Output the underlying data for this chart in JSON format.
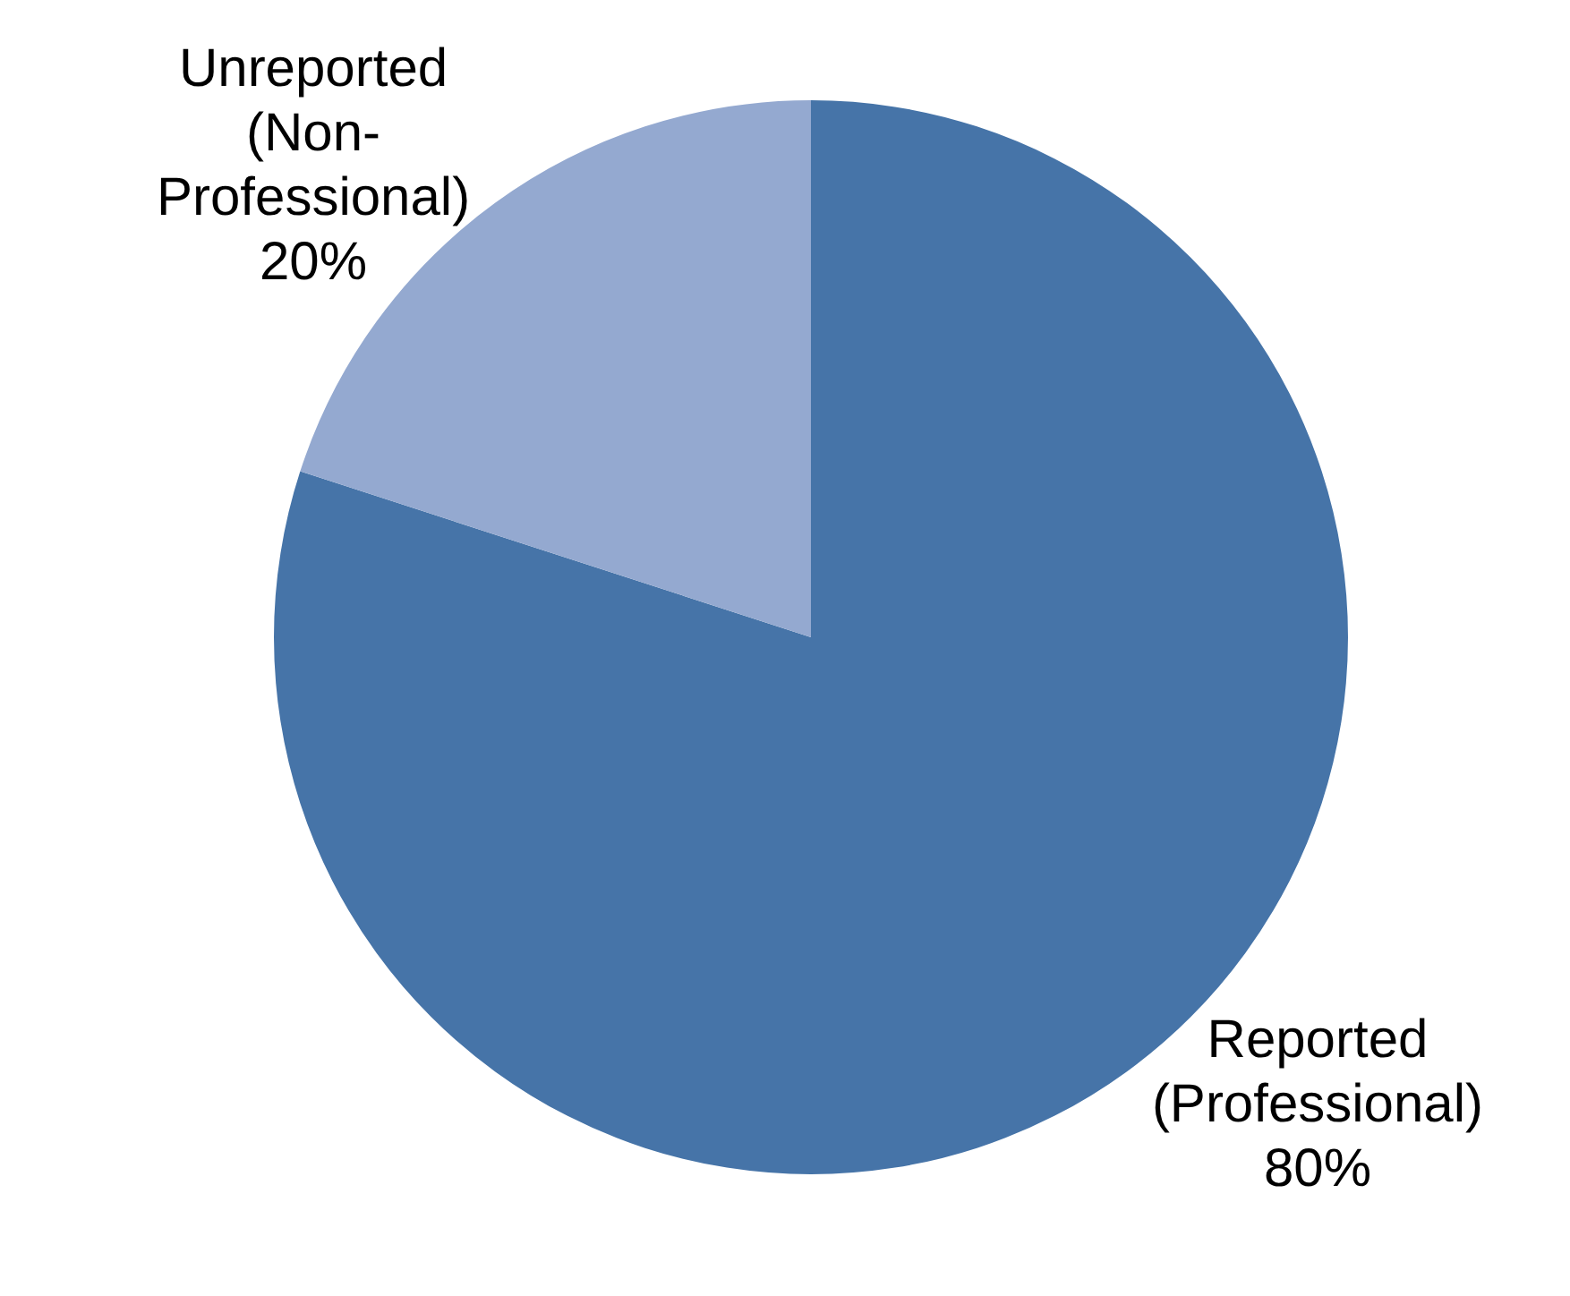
{
  "chart_data": {
    "type": "pie",
    "categories": [
      "Reported (Professional)",
      "Unreported (Non-Professional)"
    ],
    "values": [
      80,
      20
    ],
    "colors": [
      "#4674a8",
      "#94a9d0"
    ],
    "value_labels": [
      "80%",
      "20%"
    ],
    "legend": false
  }
}
